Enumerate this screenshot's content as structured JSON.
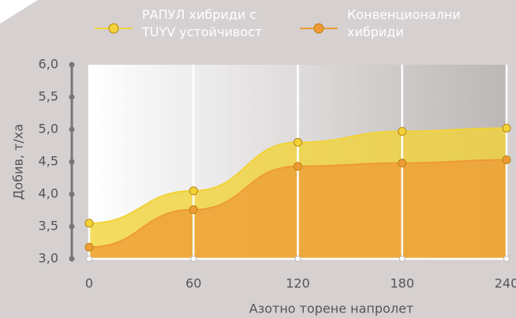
{
  "chart_data": {
    "type": "area",
    "x_label": "Азотно торене напролет",
    "y_label": "Добив, т/ха",
    "x": [
      0,
      60,
      120,
      180,
      240
    ],
    "series": [
      {
        "name": "РАПУЛ хибриди с TUYV устойчивост",
        "color": "#f1d338",
        "values": [
          3.55,
          4.05,
          4.8,
          4.97,
          5.02
        ]
      },
      {
        "name": "Конвенционални хибриди",
        "color": "#ee9a35",
        "values": [
          3.18,
          3.76,
          4.43,
          4.48,
          4.53
        ]
      }
    ],
    "xlim": [
      0,
      240
    ],
    "xticks": [
      0,
      60,
      120,
      180,
      240
    ],
    "ylim": [
      3,
      6
    ],
    "yticks": [
      {
        "value": 3,
        "label": "3,0"
      },
      {
        "value": 3.5,
        "label": "3,5"
      },
      {
        "value": 4,
        "label": "4,0"
      },
      {
        "value": 4.5,
        "label": "4,5"
      },
      {
        "value": 5,
        "label": "5,0"
      },
      {
        "value": 5.5,
        "label": "5,5"
      },
      {
        "value": 6,
        "label": "6,0"
      }
    ],
    "grid": true
  }
}
